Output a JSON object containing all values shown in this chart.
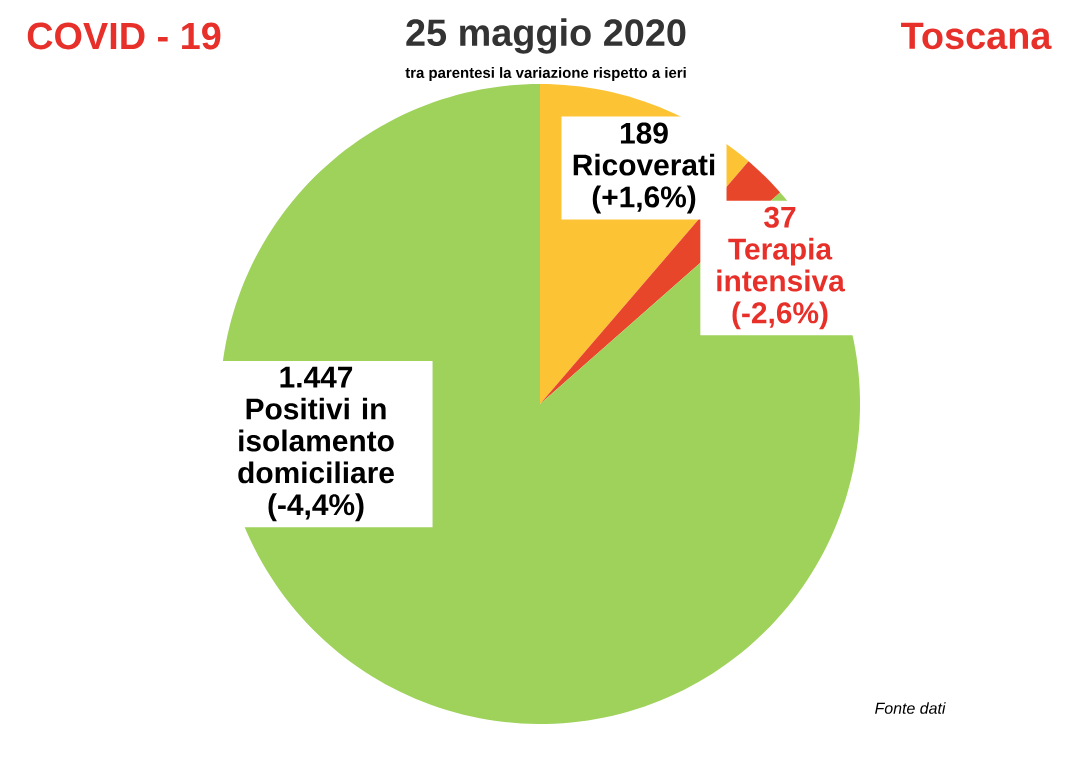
{
  "chart_data": {
    "type": "pie",
    "title": "25 maggio 2020",
    "subtitle": "tra parentesi la variazione rispetto a ieri",
    "categories": [
      "Ricoverati",
      "Terapia intensiva",
      "Positivi in isolamento domiciliare"
    ],
    "values": [
      189,
      37,
      1447
    ],
    "value_labels": [
      "189",
      "37",
      "1.447"
    ],
    "colors": [
      "#fcc335",
      "#e8462a",
      "#9fd25b"
    ],
    "annotations": [
      "(+1,6%)",
      "(-2,6%)",
      "(-4,4%)",
      "COVID - 19",
      "Toscana",
      "Fonte dati"
    ]
  }
}
